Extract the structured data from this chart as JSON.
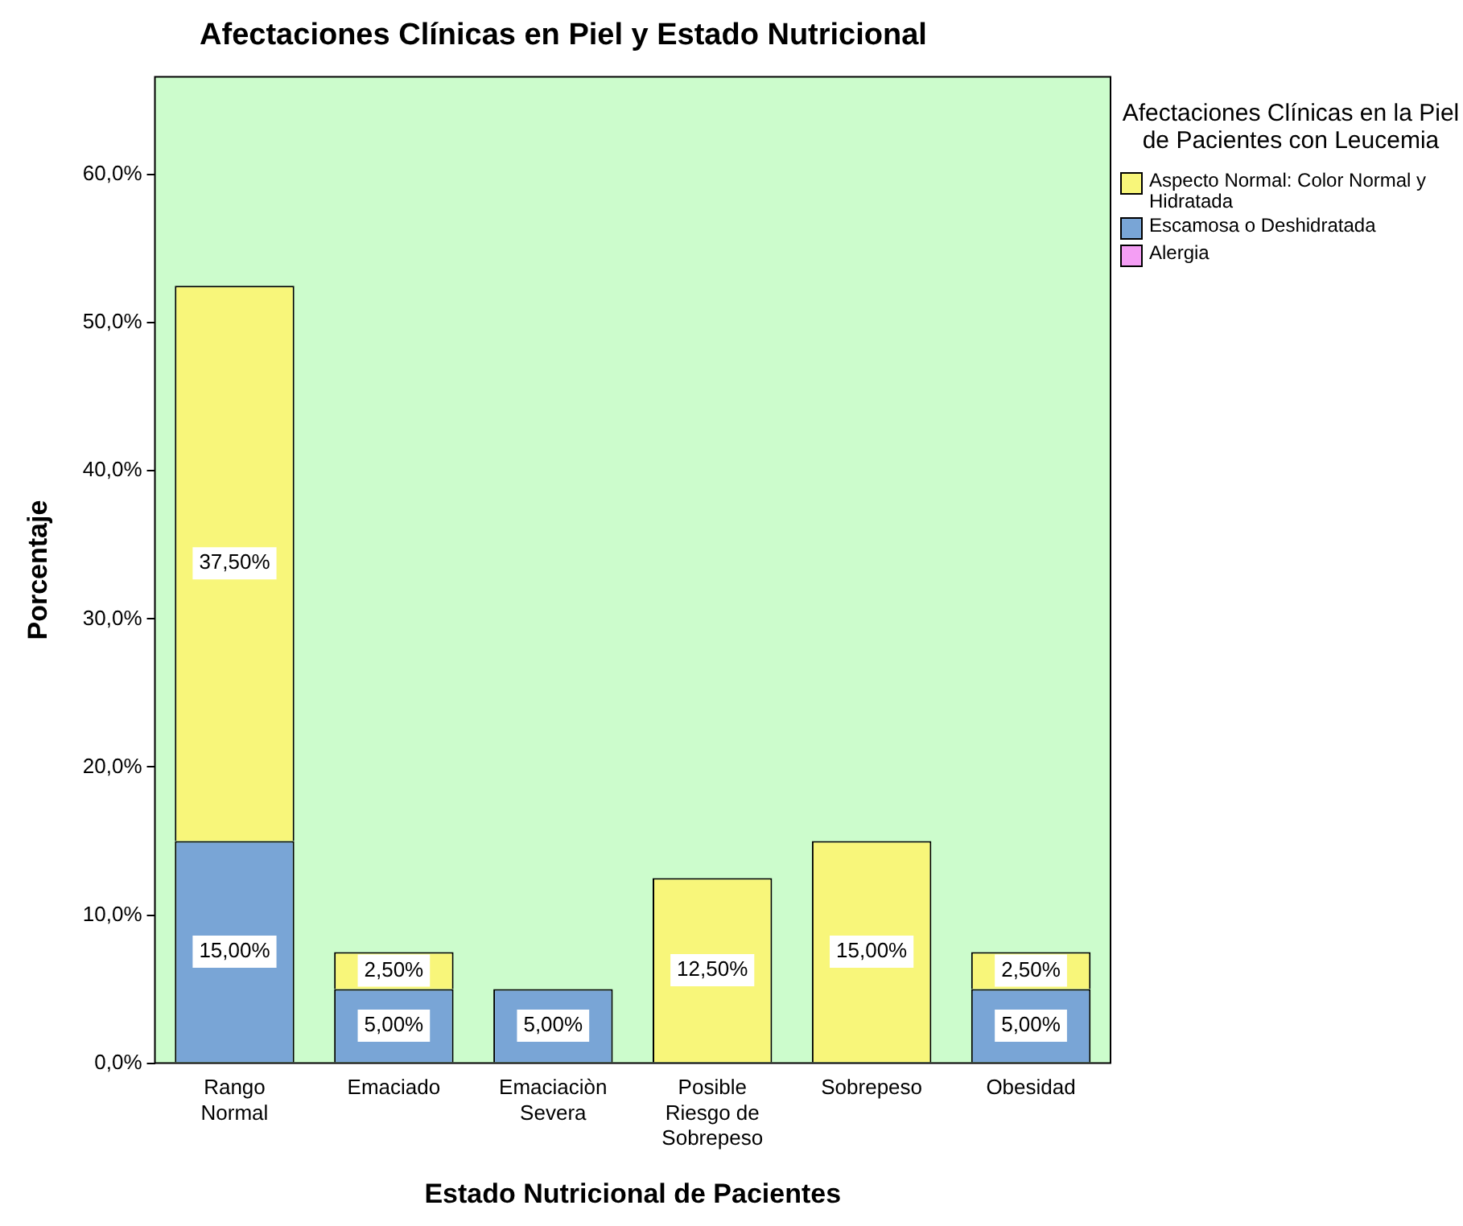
{
  "chart_data": {
    "type": "bar",
    "title": "Afectaciones Clínicas en Piel y Estado Nutricional",
    "xlabel": "Estado Nutricional de Pacientes",
    "ylabel": "Porcentaje",
    "legend_title": "Afectaciones Clínicas en la Piel de Pacientes con Leucemia",
    "legend": "top right",
    "stacked": true,
    "grid": false,
    "categories": [
      "Rango Normal",
      "Emaciado",
      "Emaciaciòn Severa",
      "Posible Riesgo de Sobrepeso",
      "Sobrepeso",
      "Obesidad"
    ],
    "ylim": [
      0,
      66.6
    ],
    "yticks": [
      {
        "value": 0,
        "label": "0,0%"
      },
      {
        "value": 10,
        "label": "10,0%"
      },
      {
        "value": 20,
        "label": "20,0%"
      },
      {
        "value": 30,
        "label": "30,0%"
      },
      {
        "value": 40,
        "label": "40,0%"
      },
      {
        "value": 50,
        "label": "50,0%"
      },
      {
        "value": 60,
        "label": "60,0%"
      }
    ],
    "series": [
      {
        "name": "Alergia",
        "color": "#f49ef4",
        "values": [
          null,
          null,
          null,
          null,
          null,
          null
        ]
      },
      {
        "name": "Escamosa o Deshidratada",
        "color": "#79a5d6",
        "values": [
          15,
          5,
          5,
          null,
          null,
          5
        ],
        "value_labels": [
          "15,00%",
          "5,00%",
          "5,00%",
          null,
          null,
          "5,00%"
        ]
      },
      {
        "name": "Aspecto Normal: Color Normal y Hidratada",
        "color": "#f8f67a",
        "values": [
          37.5,
          2.5,
          null,
          12.5,
          15,
          2.5
        ],
        "value_labels": [
          "37,50%",
          "2,50%",
          null,
          "12,50%",
          "15,00%",
          "2,50%"
        ]
      }
    ]
  }
}
